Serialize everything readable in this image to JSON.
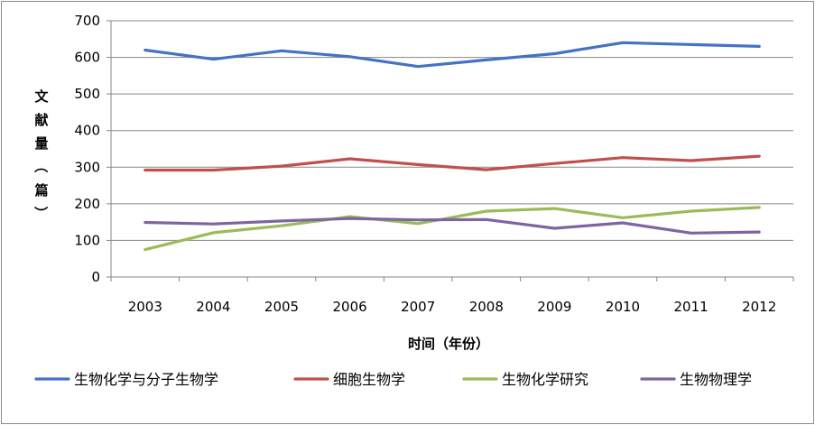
{
  "chart_data": {
    "type": "line",
    "categories": [
      "2003",
      "2004",
      "2005",
      "2006",
      "2007",
      "2008",
      "2009",
      "2010",
      "2011",
      "2012"
    ],
    "series": [
      {
        "name": "生物化学与分子生物学",
        "color": "#4472C4",
        "values": [
          620,
          595,
          618,
          602,
          575,
          593,
          610,
          640,
          635,
          630
        ]
      },
      {
        "name": "细胞生物学",
        "color": "#C0504D",
        "values": [
          292,
          292,
          303,
          323,
          307,
          293,
          310,
          326,
          318,
          330
        ]
      },
      {
        "name": "生物化学研究",
        "color": "#9BBB59",
        "values": [
          75,
          121,
          140,
          165,
          146,
          180,
          187,
          162,
          180,
          190
        ]
      },
      {
        "name": "生物物理学",
        "color": "#8064A2",
        "values": [
          149,
          145,
          153,
          160,
          156,
          157,
          133,
          148,
          120,
          123
        ]
      }
    ],
    "xlabel": "时间（年份）",
    "ylabel": "文献量（篇）",
    "ylim": [
      0,
      700
    ],
    "yticks": [
      "0",
      "100",
      "200",
      "300",
      "400",
      "500",
      "600",
      "700"
    ],
    "grid": true,
    "legend_position": "bottom"
  }
}
